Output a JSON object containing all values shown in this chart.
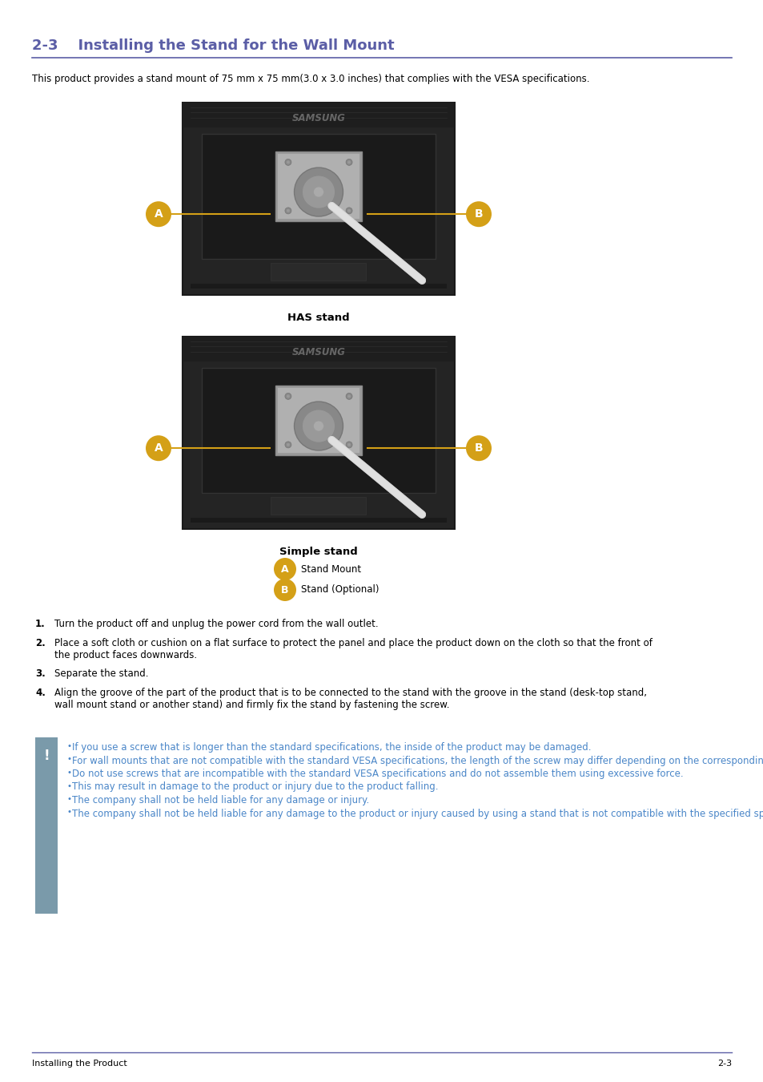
{
  "title": "2-3    Installing the Stand for the Wall Mount",
  "title_color": "#5b5ea6",
  "title_fontsize": 13,
  "header_line_color": "#5b5ea6",
  "intro_text": "This product provides a stand mount of 75 mm x 75 mm(3.0 x 3.0 inches) that complies with the VESA specifications.",
  "has_stand_label": "HAS stand",
  "simple_stand_label": "Simple stand",
  "legend_a_label": "Stand Mount",
  "legend_b_label": "Stand (Optional)",
  "badge_color": "#D4A017",
  "badge_text_color": "#ffffff",
  "steps": [
    "Turn the product off and unplug the power cord from the wall outlet.",
    "Place a soft cloth or cushion on a flat surface to protect the panel and place the product down on the cloth so that the front of the product faces downwards.",
    "Separate the stand.",
    "Align the groove of the part of the product that is to be connected to the stand with the groove in the stand (desk-top stand, wall mount stand or another stand) and firmly fix the stand by fastening the screw."
  ],
  "warning_icon_color": "#7a9aaa",
  "warning_text_color": "#4a86c8",
  "warnings": [
    "If you use a screw that is longer than the standard specifications, the inside of the product may be damaged.",
    "For wall mounts that are not compatible with the standard VESA specifications, the length of the screw may differ depending on the corresponding specifications.",
    "Do not use screws that are incompatible with the standard VESA specifications and do not assemble them using excessive force.",
    "This may result in damage to the product or injury due to the product falling.",
    "The company shall not be held liable for any damage or injury.",
    "The company shall not be held liable for any damage to the product or injury caused by using a stand that is not compatible with the specified specifications or due to an installation not performed by an authorized installation"
  ],
  "footer_left": "Installing the Product",
  "footer_right": "2-3",
  "footer_line_color": "#5b5ea6",
  "bg_color": "#ffffff",
  "text_color": "#000000",
  "body_fontsize": 8.5
}
